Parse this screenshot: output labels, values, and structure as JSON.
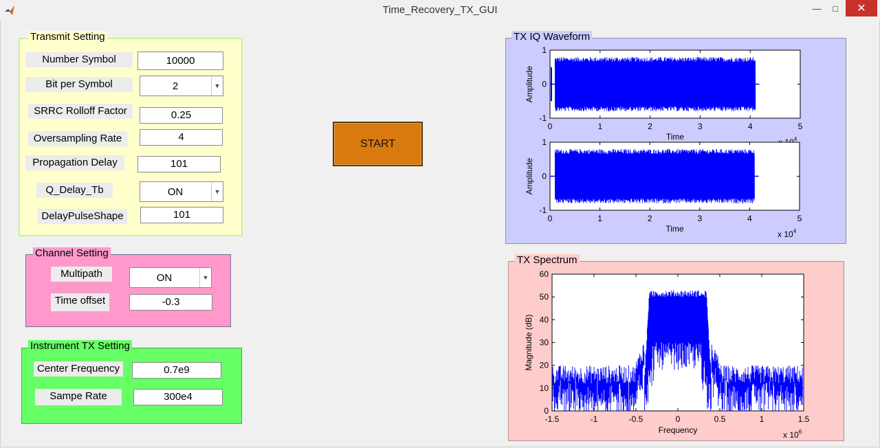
{
  "window": {
    "title": "Time_Recovery_TX_GUI"
  },
  "transmit": {
    "title": "Transmit Setting",
    "number_symbol_label": "Number Symbol",
    "number_symbol_value": "10000",
    "bit_per_symbol_label": "Bit per Symbol",
    "bit_per_symbol_value": "2",
    "srrc_label": "SRRC Rolloff Factor",
    "srrc_value": "0.25",
    "oversampling_label": "Oversampling Rate",
    "oversampling_value": "4",
    "prop_delay_label": "Propagation Delay",
    "prop_delay_value": "101",
    "q_delay_label": "Q_Delay_Tb",
    "q_delay_value": "ON",
    "delay_pulse_label": "DelayPulseShape",
    "delay_pulse_value": "101"
  },
  "channel": {
    "title": "Channel Setting",
    "multipath_label": "Multipath",
    "multipath_value": "ON",
    "time_offset_label": "Time offset",
    "time_offset_value": "-0.3"
  },
  "instrument": {
    "title": "Instrument TX Setting",
    "center_freq_label": "Center Frequency",
    "center_freq_value": "0.7e9",
    "sample_rate_label": "Sampe Rate",
    "sample_rate_value": "300e4"
  },
  "start_label": "START",
  "colors": {
    "transmit_bg": "#ffffcc",
    "transmit_border": "#c8f0a0",
    "channel_bg": "#ff99cc",
    "instrument_bg": "#66ff66",
    "waveform_bg": "#ccccff",
    "spectrum_bg": "#ffcccc",
    "start_bg": "#d97a10",
    "signal_blue": "#0000ff"
  },
  "chart_data": [
    {
      "type": "line",
      "panel": "TX IQ Waveform",
      "name": "I waveform (top axes)",
      "xlabel": "Time",
      "ylabel": "Amplitude",
      "xlim": [
        0,
        5
      ],
      "x_exponent": "x 10^4",
      "ylim": [
        -1,
        1
      ],
      "x_ticks": [
        "0",
        "1",
        "2",
        "3",
        "4",
        "5"
      ],
      "y_ticks": [
        "1",
        "0",
        "-1"
      ],
      "signal_extent": [
        0.1,
        4.1
      ],
      "amplitude_approx": 0.8,
      "grid": false
    },
    {
      "type": "line",
      "panel": "TX IQ Waveform",
      "name": "Q waveform (bottom axes)",
      "xlabel": "Time",
      "ylabel": "Amplitude",
      "xlim": [
        0,
        5
      ],
      "x_exponent": "x 10^4",
      "ylim": [
        -1,
        1
      ],
      "x_ticks": [
        "0",
        "1",
        "2",
        "3",
        "4",
        "5"
      ],
      "y_ticks": [
        "1",
        "0",
        "-1"
      ],
      "signal_extent": [
        0.1,
        4.1
      ],
      "amplitude_approx": 0.8,
      "grid": false
    },
    {
      "type": "line",
      "panel": "TX Spectrum",
      "xlabel": "Frequency",
      "ylabel": "Magnitude (dB)",
      "xlim": [
        -1.5,
        1.5
      ],
      "x_exponent": "x 10^6",
      "ylim": [
        0,
        60
      ],
      "x_ticks": [
        "-1.5",
        "-1",
        "-0.5",
        "0",
        "0.5",
        "1",
        "1.5"
      ],
      "y_ticks": [
        "60",
        "50",
        "40",
        "30",
        "20",
        "10",
        "0"
      ],
      "passband": [
        -0.4,
        0.4
      ],
      "passband_level_db": 52,
      "noise_floor_db": 12,
      "grid": false
    }
  ]
}
